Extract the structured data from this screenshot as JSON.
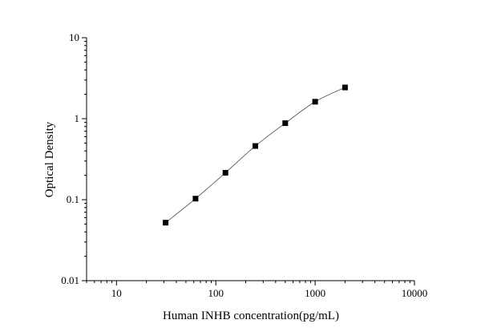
{
  "chart_data": {
    "type": "scatter",
    "title": "",
    "xlabel": "Human INHB concentration(pg/mL)",
    "ylabel": "Optical Density",
    "xscale": "log",
    "yscale": "log",
    "xlim": [
      5,
      10000
    ],
    "ylim": [
      0.01,
      10
    ],
    "xticks": [
      {
        "value": 10,
        "label": "10"
      },
      {
        "value": 100,
        "label": "100"
      },
      {
        "value": 1000,
        "label": "1000"
      },
      {
        "value": 10000,
        "label": "10000"
      }
    ],
    "yticks": [
      {
        "value": 0.01,
        "label": "0.01"
      },
      {
        "value": 0.1,
        "label": "0.1"
      },
      {
        "value": 1,
        "label": "1"
      },
      {
        "value": 10,
        "label": "10"
      }
    ],
    "grid": false,
    "legend": "none",
    "series": [
      {
        "marker": "square",
        "connect": "smooth-line",
        "points": [
          {
            "x": 31.25,
            "y": 0.052
          },
          {
            "x": 62.5,
            "y": 0.103
          },
          {
            "x": 125,
            "y": 0.215
          },
          {
            "x": 250,
            "y": 0.46
          },
          {
            "x": 500,
            "y": 0.88
          },
          {
            "x": 1000,
            "y": 1.62
          },
          {
            "x": 2000,
            "y": 2.43
          }
        ]
      }
    ],
    "colors": {
      "marker": "#000000",
      "line": "#555555",
      "axis": "#000000"
    }
  }
}
